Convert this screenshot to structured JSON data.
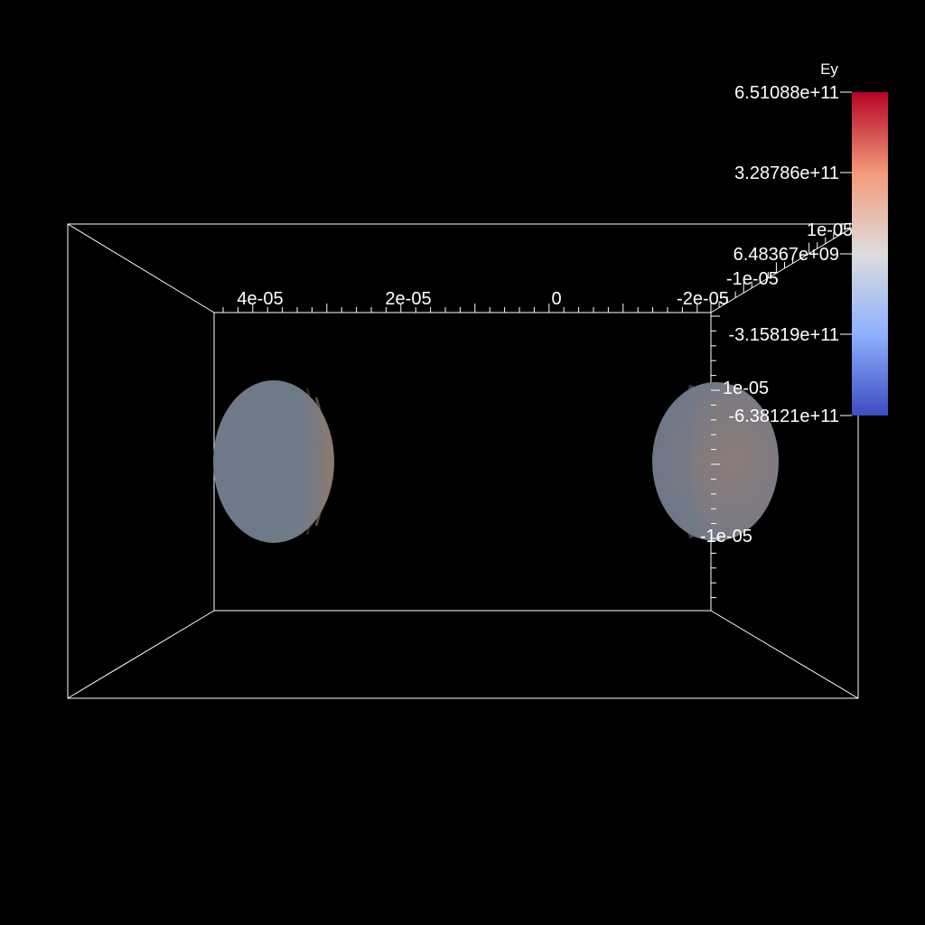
{
  "colorbar": {
    "title": "Ey",
    "max_label": "6.51088e+11",
    "labels": [
      "6.51088e+11",
      "3.28786e+11",
      "6.48367e+09",
      "-3.15819e+11",
      "-6.38121e+11"
    ],
    "min_label": "-6.38121e+11",
    "colormap": "Cool to Warm",
    "colors": [
      "#b40426",
      "#f49a7b",
      "#dddddd",
      "#8db0fe",
      "#3b4cc0"
    ]
  },
  "axes": {
    "x_tick_labels": [
      "4e-05",
      "2e-05",
      "0",
      "-2e-05"
    ],
    "y_tick_labels": [
      "1e-05",
      "-1e-05"
    ],
    "z_tick_labels": [
      "1e-05",
      "-1e-05"
    ],
    "box_color": "#ffffff"
  },
  "scene": {
    "background": "#000000",
    "objects": [
      {
        "name": "left-sphere",
        "fill": "#6f7d8c"
      },
      {
        "name": "right-sphere",
        "fill": "#7c7c86"
      }
    ]
  }
}
